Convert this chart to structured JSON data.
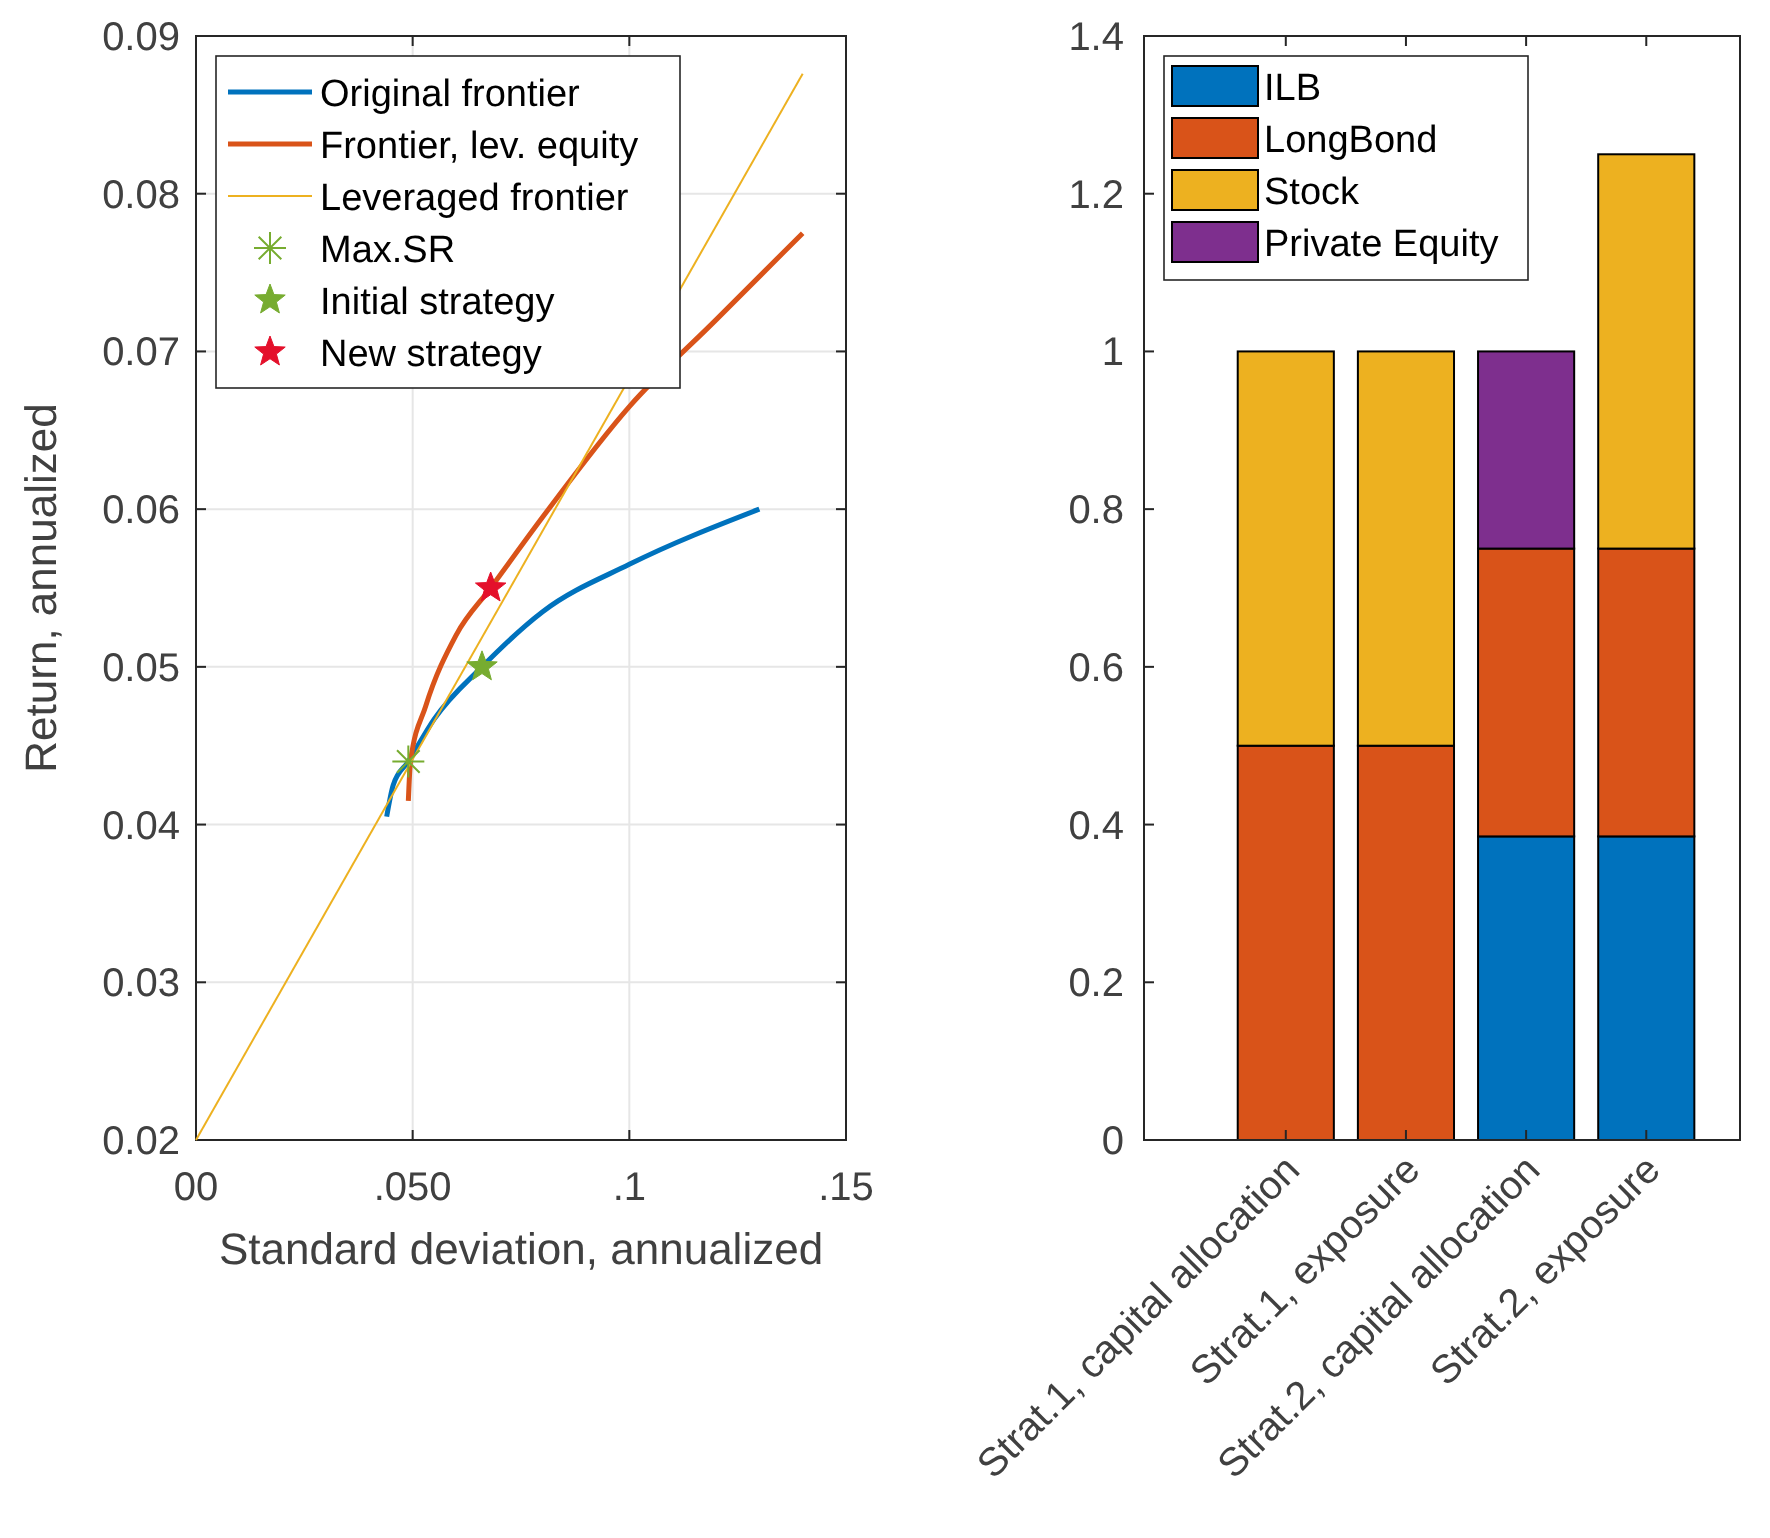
{
  "chart_data": [
    {
      "type": "line",
      "xlabel": "Standard deviation, annualized",
      "ylabel": "Return, annualized",
      "xlim": [
        0,
        0.15
      ],
      "ylim": [
        0.02,
        0.09
      ],
      "xticks": [
        {
          "value": 0,
          "label": "00"
        },
        {
          "value": 0.05,
          "label": ".050"
        },
        {
          "value": 0.1,
          "label": ".1"
        },
        {
          "value": 0.15,
          "label": ".15"
        }
      ],
      "yticks": [
        {
          "value": 0.02,
          "label": "0.02"
        },
        {
          "value": 0.03,
          "label": "0.03"
        },
        {
          "value": 0.04,
          "label": "0.04"
        },
        {
          "value": 0.05,
          "label": "0.05"
        },
        {
          "value": 0.06,
          "label": "0.06"
        },
        {
          "value": 0.07,
          "label": "0.07"
        },
        {
          "value": 0.08,
          "label": "0.08"
        },
        {
          "value": 0.09,
          "label": "0.09"
        }
      ],
      "grid": true,
      "legend": "top left",
      "series": [
        {
          "name": "Original frontier",
          "color": "#0072bd",
          "x": [
            0.044,
            0.0455,
            0.049,
            0.055,
            0.066,
            0.08,
            0.1,
            0.13
          ],
          "values": [
            0.0405,
            0.0425,
            0.044,
            0.0467,
            0.05,
            0.0535,
            0.0565,
            0.06
          ]
        },
        {
          "name": "Frontier, lev. equity",
          "color": "#d95319",
          "x": [
            0.049,
            0.0495,
            0.053,
            0.06,
            0.068,
            0.08,
            0.1,
            0.12,
            0.14
          ],
          "values": [
            0.0415,
            0.044,
            0.0475,
            0.052,
            0.055,
            0.0595,
            0.0665,
            0.072,
            0.0775
          ]
        },
        {
          "name": "Leveraged frontier",
          "color": "#edb120",
          "x": [
            0,
            0.14
          ],
          "values": [
            0.02,
            0.0876
          ]
        },
        {
          "name": "Max.SR",
          "type": "scatter",
          "marker": "cross",
          "color": "#77ac30",
          "x": [
            0.049
          ],
          "values": [
            0.044
          ]
        },
        {
          "name": "Initial strategy",
          "type": "scatter",
          "marker": "star",
          "color": "#77ac30",
          "x": [
            0.066
          ],
          "values": [
            0.05
          ]
        },
        {
          "name": "New strategy",
          "type": "scatter",
          "marker": "star",
          "color": "#e4102b",
          "x": [
            0.068
          ],
          "values": [
            0.055
          ]
        }
      ]
    },
    {
      "type": "bar",
      "stacked": true,
      "ylim": [
        0,
        1.4
      ],
      "yticks": [
        0,
        0.2,
        0.4,
        0.6,
        0.8,
        1,
        1.2,
        1.4
      ],
      "grid": false,
      "legend": "top left",
      "categories": [
        "Strat.1, capital allocation",
        "Strat.1, exposure",
        "Strat.2, capital allocation",
        "Strat.2, exposure"
      ],
      "series": [
        {
          "name": "ILB",
          "color": "#0072bd",
          "values": [
            0,
            0,
            0.385,
            0.385
          ]
        },
        {
          "name": "LongBond",
          "color": "#d95319",
          "values": [
            0.5,
            0.5,
            0.365,
            0.365
          ]
        },
        {
          "name": "Stock",
          "color": "#edb120",
          "values": [
            0.5,
            0.5,
            0,
            0.5
          ]
        },
        {
          "name": "Private Equity",
          "color": "#7e2f8e",
          "values": [
            0,
            0,
            0.25,
            0
          ]
        }
      ]
    }
  ]
}
